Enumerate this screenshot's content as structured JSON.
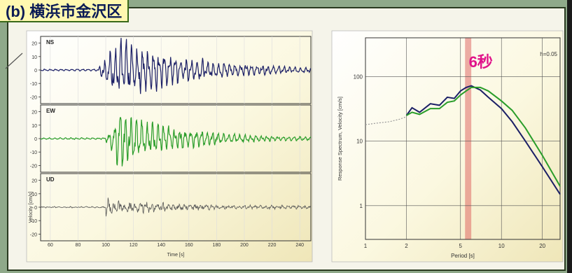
{
  "title": "(b) 横浜市金沢区",
  "colors": {
    "ns": "#1b1f66",
    "ew": "#2a9d2a",
    "ud": "#555555",
    "spec_navy": "#1b1f66",
    "spec_green": "#2a9d2a",
    "highlight": "#d94b4b",
    "title_bg": "#fff8b0",
    "title_text": "#0a1a55"
  },
  "waveform": {
    "panels": [
      {
        "label": "NS",
        "color": "#1b1f66"
      },
      {
        "label": "EW",
        "color": "#2a9d2a"
      },
      {
        "label": "UD",
        "color": "#555555"
      }
    ],
    "ylabel": "Velocity [cm/s]",
    "yticks": [
      "20",
      "10",
      "0",
      "-10",
      "-20"
    ],
    "xticks": [
      "60",
      "80",
      "100",
      "120",
      "140",
      "160",
      "180",
      "200",
      "220",
      "240"
    ],
    "xlabel": "Time [s]"
  },
  "chart_data": [
    {
      "type": "line",
      "xlabel": "Time [s]",
      "ylabel": "Velocity [cm/s]",
      "xlim": [
        53,
        248
      ],
      "ylim": [
        -25,
        25
      ],
      "series": [
        {
          "name": "NS",
          "peak_abs": 21
        },
        {
          "name": "EW",
          "peak_abs": 20
        },
        {
          "name": "UD",
          "peak_abs": 4
        }
      ]
    },
    {
      "type": "line",
      "xscale": "log",
      "yscale": "log",
      "xlabel": "Period [s]",
      "ylabel": "Response Spectrum, Velocity [cm/s]",
      "xlim": [
        1,
        27
      ],
      "ylim": [
        0.3,
        400
      ],
      "annotation": "h=0.05",
      "highlight_label": "6秒",
      "highlight_x": [
        5.4,
        6.0
      ],
      "yticks": [
        "100",
        "10",
        "1"
      ],
      "xticks": [
        "1",
        "2",
        "5",
        "10",
        "20"
      ],
      "series": [
        {
          "style": "dotted-gray",
          "x": [
            1.0,
            1.2,
            1.5,
            1.8,
            2.0
          ],
          "y": [
            18,
            19,
            20,
            22,
            24
          ]
        },
        {
          "style": "navy",
          "x": [
            2.0,
            2.2,
            2.5,
            3.0,
            3.5,
            4.0,
            4.5,
            5.0,
            5.5,
            6.0,
            7.0,
            8.0,
            10.0,
            12.0,
            15.0,
            20.0,
            27.0
          ],
          "y": [
            25,
            33,
            28,
            38,
            36,
            48,
            46,
            60,
            68,
            72,
            62,
            48,
            32,
            20,
            10,
            4,
            1.5
          ]
        },
        {
          "style": "green",
          "x": [
            2.0,
            2.2,
            2.5,
            3.0,
            3.5,
            4.0,
            4.5,
            5.0,
            5.5,
            6.0,
            7.0,
            8.0,
            10.0,
            12.0,
            15.0,
            20.0,
            27.0
          ],
          "y": [
            25,
            28,
            26,
            32,
            32,
            40,
            42,
            52,
            60,
            68,
            68,
            60,
            42,
            30,
            16,
            6,
            2.0
          ]
        }
      ]
    }
  ]
}
